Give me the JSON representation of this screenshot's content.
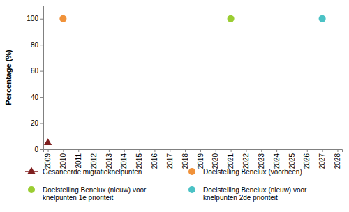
{
  "chart_data": {
    "type": "line",
    "y_label": "Percentage (%)",
    "categories": [
      "2009",
      "2010",
      "2011",
      "2012",
      "2013",
      "2014",
      "2015",
      "2016",
      "2017",
      "2018",
      "2019",
      "2020",
      "2021",
      "2022",
      "2023",
      "2024",
      "2025",
      "2026",
      "2027",
      "2028"
    ],
    "ylim": [
      0,
      110
    ],
    "yticks": [
      0,
      20,
      40,
      60,
      80,
      100
    ],
    "grid": false,
    "legend": "bottom",
    "series": [
      {
        "name": "Gesaneerde migratieknelpunten",
        "type": "line",
        "color": "#7f1f1f",
        "marker": "triangle",
        "line_style": "solid",
        "values": [
          5,
          null,
          null,
          null,
          null,
          null,
          null,
          null,
          null,
          null,
          null,
          null,
          null,
          null,
          null,
          null,
          null,
          null,
          null,
          null
        ]
      },
      {
        "name": "Doelstelling Benelux (voorheen)",
        "type": "scatter",
        "color": "#f0923a",
        "marker": "circle",
        "values": [
          null,
          100,
          null,
          null,
          null,
          null,
          null,
          null,
          null,
          null,
          null,
          null,
          null,
          null,
          null,
          null,
          null,
          null,
          null,
          null
        ]
      },
      {
        "name": "Doelstelling Benelux (nieuw) voor knelpunten 1e prioriteit",
        "type": "scatter",
        "color": "#9acd32",
        "marker": "circle",
        "values": [
          null,
          null,
          null,
          null,
          null,
          null,
          null,
          null,
          null,
          null,
          null,
          null,
          100,
          null,
          null,
          null,
          null,
          null,
          null,
          null
        ]
      },
      {
        "name": "Doelstelling Benelux (nieuw) voor knelpunten 2de prioriteit",
        "type": "scatter",
        "color": "#4bc2c5",
        "marker": "circle",
        "values": [
          null,
          null,
          null,
          null,
          null,
          null,
          null,
          null,
          null,
          null,
          null,
          null,
          null,
          null,
          null,
          null,
          null,
          null,
          100,
          null
        ]
      }
    ]
  }
}
